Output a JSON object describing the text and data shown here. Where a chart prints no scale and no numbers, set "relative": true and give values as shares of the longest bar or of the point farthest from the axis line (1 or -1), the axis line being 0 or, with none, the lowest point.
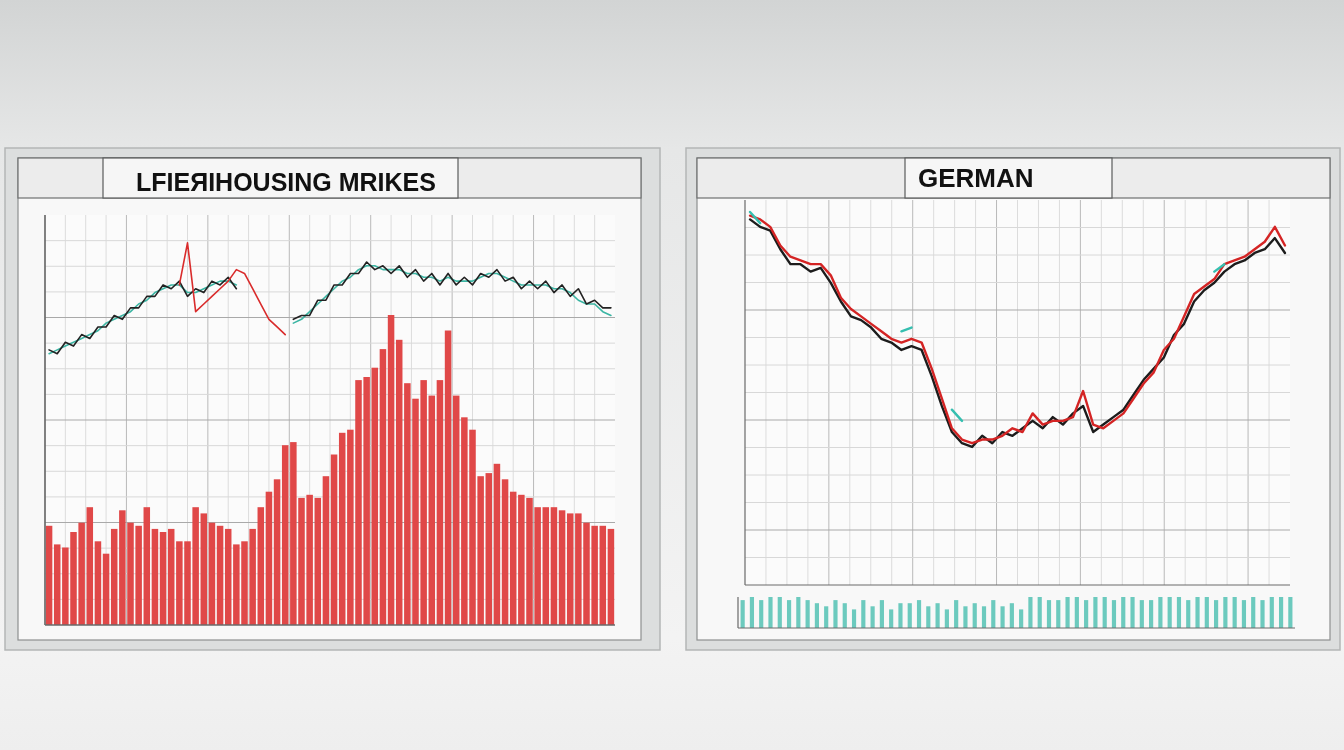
{
  "chart_data": [
    {
      "type": "bar",
      "title": "LFIEЯIHOUSING MRIKES",
      "relative": true,
      "grid": true,
      "color": "#e04848",
      "categories": [
        null,
        null,
        null,
        null,
        null,
        null,
        null,
        null,
        null,
        null,
        null,
        null,
        null,
        null,
        null,
        null,
        null,
        null,
        null,
        null,
        null,
        null,
        null,
        null,
        null,
        null,
        null,
        null,
        null,
        null,
        null,
        null,
        null,
        null,
        null,
        null,
        null,
        null,
        null,
        null,
        null,
        null,
        null,
        null,
        null,
        null,
        null,
        null,
        null,
        null,
        null,
        null,
        null,
        null,
        null,
        null,
        null,
        null,
        null,
        null,
        null,
        null,
        null,
        null,
        null,
        null,
        null,
        null,
        null,
        null
      ],
      "values": [
        0.32,
        0.26,
        0.25,
        0.3,
        0.33,
        0.38,
        0.27,
        0.23,
        0.31,
        0.37,
        0.33,
        0.32,
        0.38,
        0.31,
        0.3,
        0.31,
        0.27,
        0.27,
        0.38,
        0.36,
        0.33,
        0.32,
        0.31,
        0.26,
        0.27,
        0.31,
        0.38,
        0.43,
        0.47,
        0.58,
        0.59,
        0.41,
        0.42,
        0.41,
        0.48,
        0.55,
        0.62,
        0.63,
        0.79,
        0.8,
        0.83,
        0.89,
        1,
        0.92,
        0.78,
        0.73,
        0.79,
        0.74,
        0.79,
        0.95,
        0.74,
        0.67,
        0.63,
        0.48,
        0.49,
        0.52,
        0.47,
        0.43,
        0.42,
        0.41,
        0.38,
        0.38,
        0.38,
        0.37,
        0.36,
        0.36,
        0.33,
        0.32,
        0.32,
        0.31
      ]
    },
    {
      "type": "line",
      "relative": true,
      "categories": [
        null,
        null,
        null,
        null,
        null,
        null,
        null,
        null,
        null,
        null,
        null,
        null,
        null,
        null,
        null,
        null,
        null,
        null,
        null,
        null,
        null,
        null,
        null,
        null,
        null,
        null,
        null,
        null,
        null,
        null,
        null,
        null,
        null,
        null,
        null,
        null,
        null,
        null,
        null,
        null,
        null,
        null,
        null,
        null,
        null,
        null,
        null,
        null,
        null,
        null,
        null,
        null,
        null,
        null,
        null,
        null,
        null,
        null,
        null,
        null,
        null,
        null,
        null,
        null,
        null,
        null,
        null,
        null,
        null,
        null
      ],
      "series": [
        {
          "color": "#3bb5a3",
          "values": [
            0.71,
            0.72,
            0.73,
            0.74,
            0.75,
            0.76,
            0.77,
            0.79,
            0.8,
            0.81,
            0.82,
            0.84,
            0.85,
            0.87,
            0.88,
            0.89,
            0.89,
            0.87,
            0.87,
            0.88,
            0.89,
            0.9,
            0.9,
            0.89,
            null,
            null,
            null,
            null,
            null,
            null,
            0.79,
            0.8,
            0.82,
            0.84,
            0.86,
            0.88,
            0.9,
            0.91,
            0.93,
            0.94,
            0.94,
            0.93,
            0.93,
            0.93,
            0.92,
            0.92,
            0.91,
            0.91,
            0.9,
            0.91,
            0.9,
            0.9,
            0.9,
            0.91,
            0.92,
            0.92,
            0.91,
            0.9,
            0.89,
            0.89,
            0.89,
            0.89,
            0.88,
            0.88,
            0.87,
            0.85,
            0.84,
            0.84,
            0.82,
            0.81
          ]
        },
        {
          "color": "#222222",
          "values": [
            0.72,
            0.71,
            0.74,
            0.73,
            0.76,
            0.75,
            0.78,
            0.78,
            0.81,
            0.8,
            0.83,
            0.83,
            0.86,
            0.86,
            0.89,
            0.88,
            0.9,
            0.86,
            0.88,
            0.87,
            0.9,
            0.89,
            0.91,
            0.88,
            null,
            null,
            null,
            null,
            null,
            null,
            0.8,
            0.81,
            0.81,
            0.85,
            0.85,
            0.89,
            0.89,
            0.92,
            0.92,
            0.95,
            0.93,
            0.94,
            0.92,
            0.94,
            0.91,
            0.93,
            0.9,
            0.92,
            0.89,
            0.92,
            0.89,
            0.91,
            0.89,
            0.92,
            0.91,
            0.93,
            0.9,
            0.91,
            0.88,
            0.9,
            0.88,
            0.9,
            0.87,
            0.89,
            0.86,
            0.88,
            0.84,
            0.85,
            0.83,
            0.83
          ]
        },
        {
          "color": "#d92b2b",
          "values": [
            null,
            null,
            null,
            null,
            null,
            null,
            null,
            null,
            null,
            null,
            null,
            null,
            null,
            null,
            null,
            null,
            0.89,
            1.0,
            0.82,
            0.84,
            0.86,
            0.88,
            0.9,
            0.93,
            0.92,
            0.88,
            0.84,
            0.8,
            0.78,
            0.76,
            null,
            null,
            null,
            null,
            null,
            null,
            null,
            null,
            null,
            null,
            null,
            null,
            null,
            null,
            null,
            null,
            null,
            null,
            null,
            null,
            null,
            null,
            null,
            null,
            null,
            null,
            null,
            null,
            null,
            null,
            null,
            null,
            null,
            null,
            null,
            null,
            null,
            null,
            null,
            null
          ]
        }
      ]
    },
    {
      "type": "line",
      "title": "GERMAN",
      "relative": true,
      "grid": true,
      "categories": [
        null,
        null,
        null,
        null,
        null,
        null,
        null,
        null,
        null,
        null,
        null,
        null,
        null,
        null,
        null,
        null,
        null,
        null,
        null,
        null,
        null,
        null,
        null,
        null,
        null,
        null,
        null,
        null,
        null,
        null,
        null,
        null,
        null,
        null,
        null,
        null,
        null,
        null,
        null,
        null,
        null,
        null,
        null,
        null,
        null,
        null,
        null,
        null,
        null,
        null,
        null,
        null,
        null,
        null
      ],
      "series": [
        {
          "color": "#1c1c1c",
          "values": [
            0.98,
            0.96,
            0.95,
            0.9,
            0.86,
            0.86,
            0.84,
            0.85,
            0.81,
            0.76,
            0.72,
            0.71,
            0.69,
            0.66,
            0.65,
            0.63,
            0.64,
            0.63,
            0.56,
            0.48,
            0.41,
            0.38,
            0.37,
            0.4,
            0.38,
            0.41,
            0.4,
            0.42,
            0.44,
            0.42,
            0.45,
            0.43,
            0.46,
            0.48,
            0.41,
            0.43,
            0.45,
            0.47,
            0.51,
            0.55,
            0.58,
            0.61,
            0.67,
            0.7,
            0.76,
            0.79,
            0.81,
            0.84,
            0.86,
            0.87,
            0.89,
            0.9,
            0.93,
            0.89
          ]
        },
        {
          "color": "#d42424",
          "values": [
            0.99,
            0.98,
            0.96,
            0.91,
            0.88,
            0.87,
            0.86,
            0.86,
            0.83,
            0.77,
            0.74,
            0.72,
            0.7,
            0.68,
            0.66,
            0.65,
            0.66,
            0.65,
            0.58,
            0.5,
            0.42,
            0.39,
            0.38,
            0.39,
            0.39,
            0.4,
            0.42,
            0.41,
            0.46,
            0.43,
            0.44,
            0.44,
            0.45,
            0.52,
            0.43,
            0.42,
            0.44,
            0.46,
            0.5,
            0.54,
            0.57,
            0.63,
            0.66,
            0.72,
            0.78,
            0.8,
            0.82,
            0.86,
            0.87,
            0.88,
            0.9,
            0.92,
            0.96,
            0.91
          ]
        },
        {
          "color": "#35bfb0",
          "values": [
            1.0,
            0.97,
            null,
            null,
            null,
            null,
            null,
            null,
            null,
            null,
            null,
            null,
            null,
            null,
            null,
            0.68,
            0.69,
            null,
            null,
            null,
            0.47,
            0.44,
            null,
            null,
            null,
            null,
            null,
            null,
            null,
            null,
            null,
            null,
            null,
            null,
            null,
            null,
            null,
            null,
            null,
            null,
            null,
            null,
            null,
            null,
            null,
            null,
            0.84,
            0.86,
            null,
            null,
            null,
            null,
            null,
            null
          ]
        }
      ]
    },
    {
      "type": "bar",
      "relative": true,
      "color": "#6ccabe",
      "categories": [
        null,
        null,
        null,
        null,
        null,
        null,
        null,
        null,
        null,
        null,
        null,
        null,
        null,
        null,
        null,
        null,
        null,
        null,
        null,
        null,
        null,
        null,
        null,
        null,
        null,
        null,
        null,
        null,
        null,
        null,
        null,
        null,
        null,
        null,
        null,
        null,
        null,
        null,
        null,
        null,
        null,
        null,
        null,
        null,
        null,
        null,
        null,
        null,
        null,
        null,
        null,
        null,
        null,
        null,
        null,
        null,
        null,
        null,
        null,
        null
      ],
      "values": [
        0.9,
        1,
        0.9,
        1,
        1,
        0.9,
        1,
        0.9,
        0.8,
        0.7,
        0.9,
        0.8,
        0.6,
        0.9,
        0.7,
        0.9,
        0.6,
        0.8,
        0.8,
        0.9,
        0.7,
        0.8,
        0.6,
        0.9,
        0.7,
        0.8,
        0.7,
        0.9,
        0.7,
        0.8,
        0.6,
        1,
        1,
        0.9,
        0.9,
        1,
        1,
        0.9,
        1,
        1,
        0.9,
        1,
        1,
        0.9,
        0.9,
        1,
        1,
        1,
        0.9,
        1,
        1,
        0.9,
        1,
        1,
        0.9,
        1,
        0.9,
        1,
        1,
        1
      ]
    }
  ]
}
